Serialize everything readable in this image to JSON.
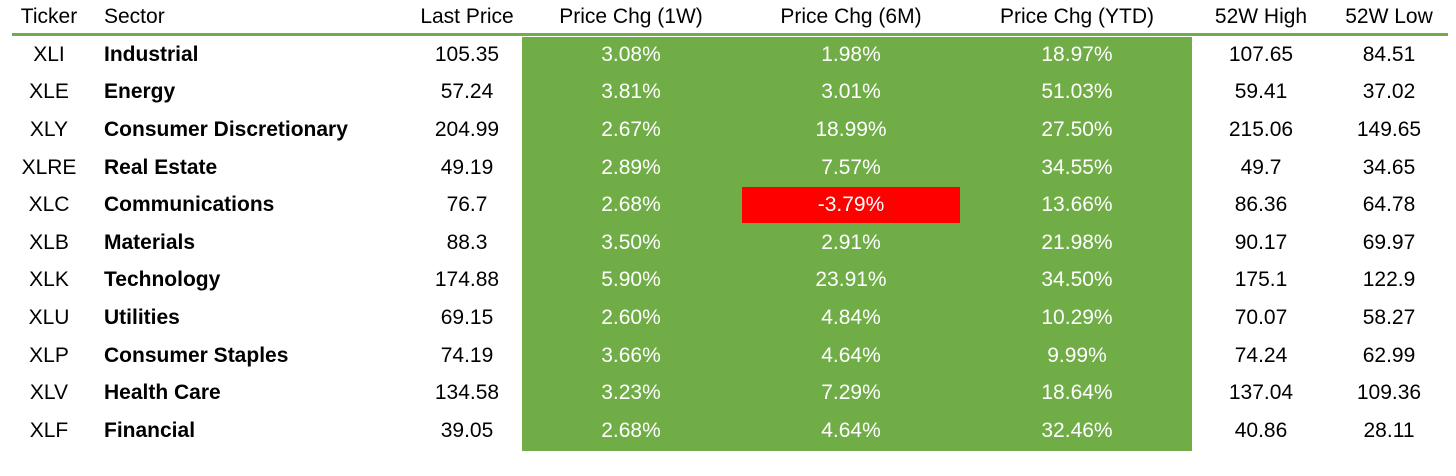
{
  "headers": {
    "ticker": "Ticker",
    "sector": "Sector",
    "last_price": "Last Price",
    "chg_1w": "Price Chg (1W)",
    "chg_6m": "Price Chg (6M)",
    "chg_ytd": "Price Chg (YTD)",
    "high_52w": "52W High",
    "low_52w": "52W Low"
  },
  "colors": {
    "positive_fill": "#70ad47",
    "negative_fill": "#ff0000",
    "header_rule": "#70ad47"
  },
  "rows": [
    {
      "ticker": "XLI",
      "sector": "Industrial",
      "last": "105.35",
      "w1": "3.08%",
      "m6": "1.98%",
      "ytd": "18.97%",
      "high": "107.65",
      "low": "84.51"
    },
    {
      "ticker": "XLE",
      "sector": "Energy",
      "last": "57.24",
      "w1": "3.81%",
      "m6": "3.01%",
      "ytd": "51.03%",
      "high": "59.41",
      "low": "37.02"
    },
    {
      "ticker": "XLY",
      "sector": "Consumer Discretionary",
      "last": "204.99",
      "w1": "2.67%",
      "m6": "18.99%",
      "ytd": "27.50%",
      "high": "215.06",
      "low": "149.65"
    },
    {
      "ticker": "XLRE",
      "sector": "Real Estate",
      "last": "49.19",
      "w1": "2.89%",
      "m6": "7.57%",
      "ytd": "34.55%",
      "high": "49.7",
      "low": "34.65"
    },
    {
      "ticker": "XLC",
      "sector": "Communications",
      "last": "76.7",
      "w1": "2.68%",
      "m6": "-3.79%",
      "ytd": "13.66%",
      "high": "86.36",
      "low": "64.78"
    },
    {
      "ticker": "XLB",
      "sector": "Materials",
      "last": "88.3",
      "w1": "3.50%",
      "m6": "2.91%",
      "ytd": "21.98%",
      "high": "90.17",
      "low": "69.97"
    },
    {
      "ticker": "XLK",
      "sector": "Technology",
      "last": "174.88",
      "w1": "5.90%",
      "m6": "23.91%",
      "ytd": "34.50%",
      "high": "175.1",
      "low": "122.9"
    },
    {
      "ticker": "XLU",
      "sector": "Utilities",
      "last": "69.15",
      "w1": "2.60%",
      "m6": "4.84%",
      "ytd": "10.29%",
      "high": "70.07",
      "low": "58.27"
    },
    {
      "ticker": "XLP",
      "sector": "Consumer Staples",
      "last": "74.19",
      "w1": "3.66%",
      "m6": "4.64%",
      "ytd": "9.99%",
      "high": "74.24",
      "low": "62.99"
    },
    {
      "ticker": "XLV",
      "sector": "Health Care",
      "last": "134.58",
      "w1": "3.23%",
      "m6": "7.29%",
      "ytd": "18.64%",
      "high": "137.04",
      "low": "109.36"
    },
    {
      "ticker": "XLF",
      "sector": "Financial",
      "last": "39.05",
      "w1": "2.68%",
      "m6": "4.64%",
      "ytd": "32.46%",
      "high": "40.86",
      "low": "28.11"
    }
  ]
}
